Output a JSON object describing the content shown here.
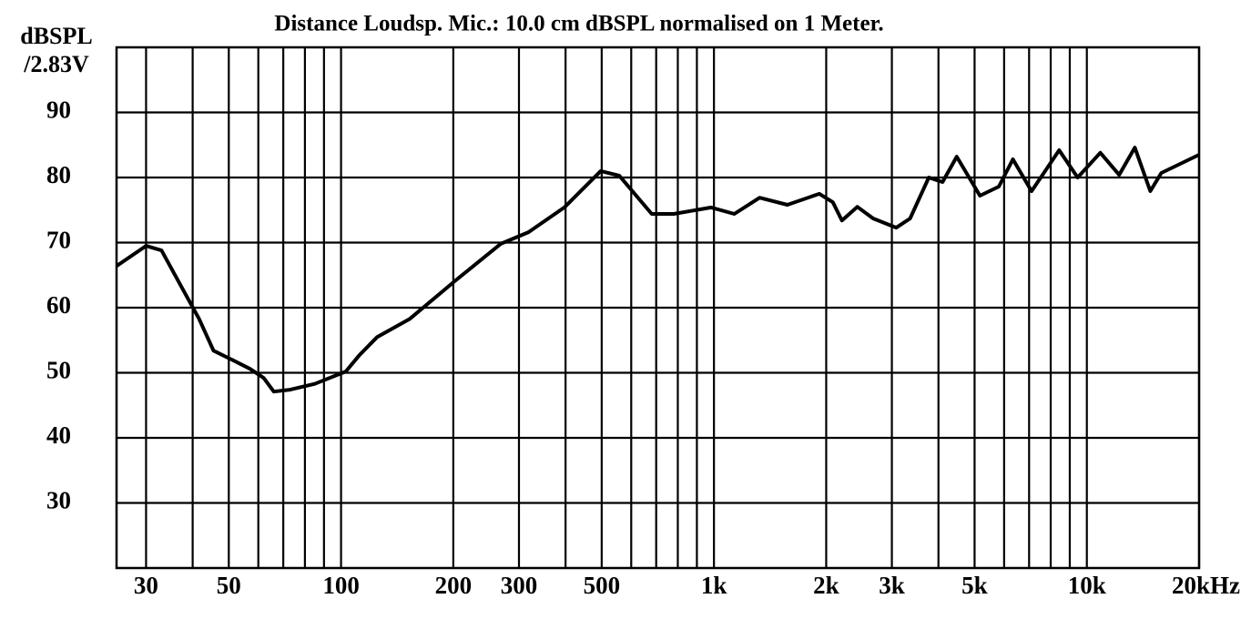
{
  "chart_data": {
    "type": "line",
    "title": "Distance Loudsp. Mic.:  10.0 cm dBSPL normalised on 1 Meter.",
    "y_label": [
      "dBSPL",
      "/2.83V"
    ],
    "log_x": true,
    "grid": true,
    "xlim": [
      25,
      20000
    ],
    "ylim": [
      20,
      100
    ],
    "yticks": [
      30,
      40,
      50,
      60,
      70,
      80,
      90
    ],
    "xticks": [
      30,
      50,
      100,
      200,
      300,
      500,
      {
        "value": 1000,
        "label": "1k"
      },
      {
        "value": 2000,
        "label": "2k"
      },
      {
        "value": 3000,
        "label": "3k"
      },
      {
        "value": 5000,
        "label": "5k"
      },
      {
        "value": 10000,
        "label": "10k"
      },
      {
        "value": 20000,
        "label": "20kHz"
      }
    ],
    "xgrid_minor": [
      40,
      60,
      70,
      80,
      90,
      400,
      600,
      700,
      800,
      900,
      4000,
      6000,
      7000,
      8000,
      9000
    ],
    "series": [
      {
        "color": "#000000",
        "x": [
          25,
          30,
          33,
          37.5,
          41.6,
          45.5,
          51,
          57,
          62,
          66,
          73,
          85,
          103,
          112,
          125,
          153,
          203,
          268,
          318,
          397,
          497,
          557,
          681,
          780,
          983,
          1134,
          1326,
          1574,
          1917,
          2085,
          2204,
          2424,
          2672,
          3083,
          3358,
          3767,
          4102,
          4477,
          5168,
          5807,
          6336,
          7109,
          8430,
          9450,
          10870,
          12210,
          13450,
          14800,
          15840,
          20000
        ],
        "values": [
          66.4,
          69.5,
          68.8,
          63,
          58.3,
          53.4,
          52,
          50.6,
          49.2,
          47.1,
          47.4,
          48.3,
          50.2,
          52.7,
          55.5,
          58.3,
          64.2,
          69.8,
          71.6,
          75.4,
          81,
          80.3,
          74.4,
          74.4,
          75.4,
          74.4,
          76.9,
          75.8,
          77.5,
          76.2,
          73.4,
          75.5,
          73.7,
          72.3,
          73.7,
          80,
          79.3,
          83.2,
          77.2,
          78.6,
          82.8,
          77.9,
          84.2,
          80,
          83.8,
          80.4,
          84.6,
          77.9,
          80.7,
          83.5
        ]
      }
    ]
  }
}
